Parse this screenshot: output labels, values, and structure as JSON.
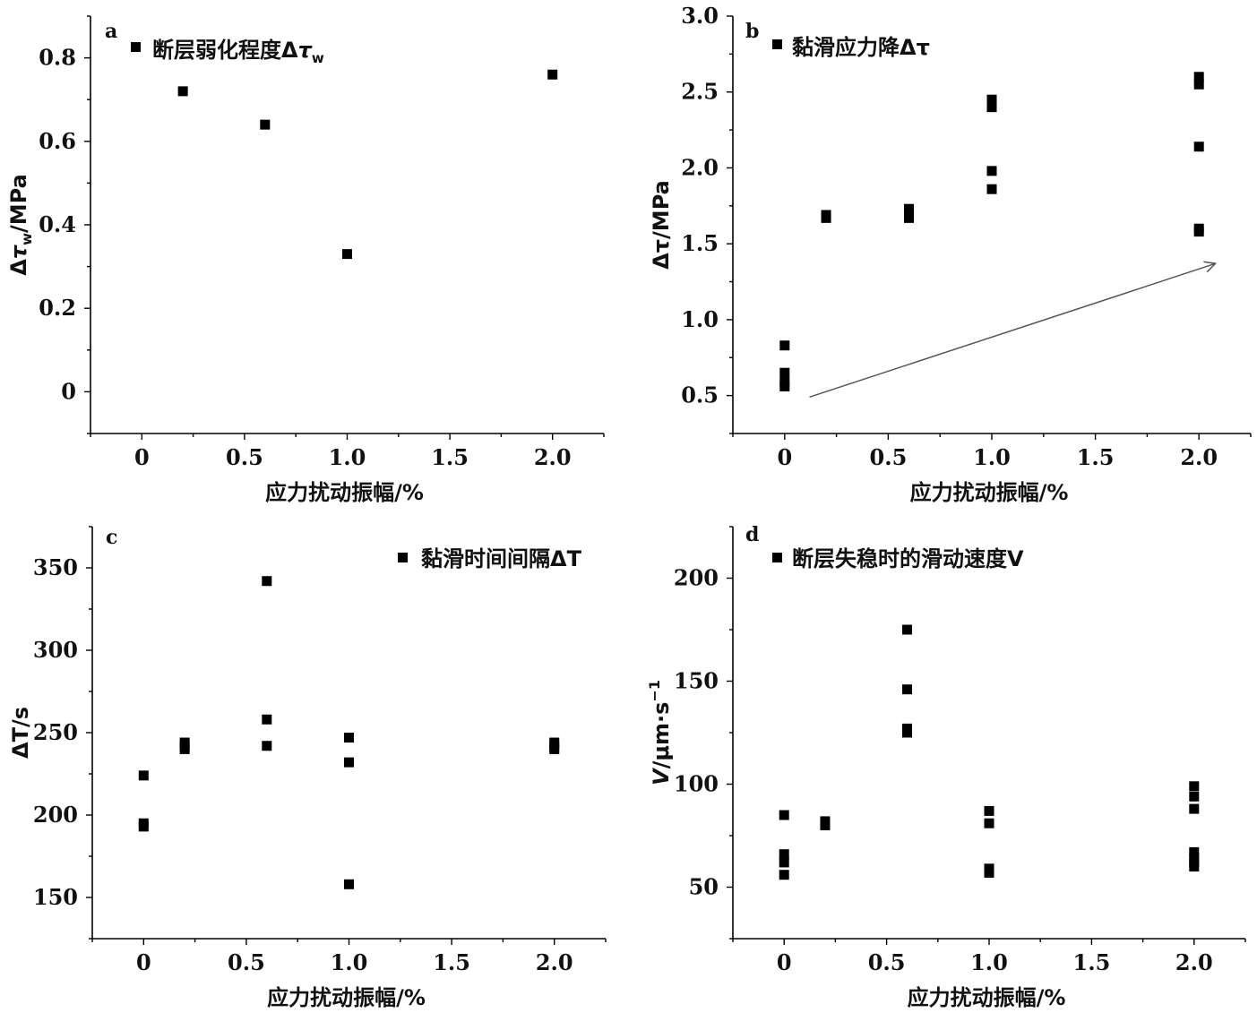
{
  "chart_data": [
    {
      "id": "a",
      "type": "scatter",
      "panel_label": "a",
      "xlabel": "应力扰动振幅/%",
      "ylabel": "Δτw/MPa",
      "xlim": [
        -0.25,
        2.25
      ],
      "ylim": [
        -0.1,
        0.9
      ],
      "xticks": [
        0,
        0.5,
        1.0,
        1.5,
        2.0
      ],
      "xtick_labels": [
        "0",
        "0.5",
        "1.0",
        "1.5",
        "2.0"
      ],
      "yticks": [
        0,
        0.2,
        0.4,
        0.6,
        0.8
      ],
      "ytick_labels": [
        "0",
        "0.2",
        "0.4",
        "0.6",
        "0.8"
      ],
      "legend_position": "top-left",
      "series": [
        {
          "name": "断层弱化程度Δτw",
          "marker": "square",
          "x": [
            0.2,
            0.6,
            1.0,
            2.0
          ],
          "y": [
            0.72,
            0.64,
            0.33,
            0.76
          ]
        }
      ]
    },
    {
      "id": "b",
      "type": "scatter",
      "panel_label": "b",
      "xlabel": "应力扰动振幅/%",
      "ylabel": "Δτ/MPa",
      "xlim": [
        -0.25,
        2.25
      ],
      "ylim": [
        0.25,
        3.0
      ],
      "xticks": [
        0,
        0.5,
        1.0,
        1.5,
        2.0
      ],
      "xtick_labels": [
        "0",
        "0.5",
        "1.0",
        "1.5",
        "2.0"
      ],
      "yticks": [
        0.5,
        1.0,
        1.5,
        2.0,
        2.5,
        3.0
      ],
      "ytick_labels": [
        "0.5",
        "1.0",
        "1.5",
        "2.0",
        "2.5",
        "3.0"
      ],
      "legend_position": "top-left",
      "trend_arrow": {
        "from": [
          0.12,
          0.49
        ],
        "to": [
          2.08,
          1.37
        ]
      },
      "series": [
        {
          "name": "黏滑应力降Δτ",
          "marker": "square",
          "x": [
            0,
            0,
            0,
            0,
            0.2,
            0.2,
            0.6,
            0.6,
            0.6,
            1.0,
            1.0,
            1.0,
            1.0,
            1.0,
            2.0,
            2.0,
            2.0,
            2.0,
            2.0
          ],
          "y": [
            0.83,
            0.65,
            0.59,
            0.56,
            1.69,
            1.67,
            1.73,
            1.7,
            1.67,
            2.45,
            2.4,
            1.98,
            1.86,
            2.43,
            2.6,
            2.55,
            2.14,
            1.6,
            1.58
          ]
        }
      ]
    },
    {
      "id": "c",
      "type": "scatter",
      "panel_label": "c",
      "xlabel": "应力扰动振幅/%",
      "ylabel": "ΔT/s",
      "xlim": [
        -0.25,
        2.25
      ],
      "ylim": [
        125,
        375
      ],
      "xticks": [
        0,
        0.5,
        1.0,
        1.5,
        2.0
      ],
      "xtick_labels": [
        "0",
        "0.5",
        "1.0",
        "1.5",
        "2.0"
      ],
      "yticks": [
        150,
        200,
        250,
        300,
        350
      ],
      "ytick_labels": [
        "150",
        "200",
        "250",
        "300",
        "350"
      ],
      "legend_position": "top-right",
      "series": [
        {
          "name": "黏滑时间间隔ΔT",
          "marker": "square",
          "x": [
            0,
            0,
            0,
            0.2,
            0.2,
            0.2,
            0.6,
            0.6,
            0.6,
            1.0,
            1.0,
            1.0,
            2.0,
            2.0,
            2.0
          ],
          "y": [
            224,
            195,
            193,
            244,
            242,
            240,
            342,
            258,
            242,
            247,
            232,
            158,
            244,
            242,
            240
          ]
        }
      ]
    },
    {
      "id": "d",
      "type": "scatter",
      "panel_label": "d",
      "xlabel": "应力扰动振幅/%",
      "ylabel": "V/μm·s⁻¹",
      "xlim": [
        -0.25,
        2.25
      ],
      "ylim": [
        25,
        225
      ],
      "xticks": [
        0,
        0.5,
        1.0,
        1.5,
        2.0
      ],
      "xtick_labels": [
        "0",
        "0.5",
        "1.0",
        "1.5",
        "2.0"
      ],
      "yticks": [
        50,
        100,
        150,
        200
      ],
      "ytick_labels": [
        "50",
        "100",
        "150",
        "200"
      ],
      "legend_position": "top-left",
      "series": [
        {
          "name": "断层失稳时的滑动速度V",
          "marker": "square",
          "x": [
            0,
            0,
            0,
            0,
            0.2,
            0.2,
            0.6,
            0.6,
            0.6,
            0.6,
            1.0,
            1.0,
            1.0,
            1.0,
            2.0,
            2.0,
            2.0,
            2.0,
            2.0,
            2.0,
            2.0
          ],
          "y": [
            85,
            66,
            62,
            56,
            82,
            80,
            175,
            146,
            127,
            125,
            87,
            81,
            59,
            57,
            99,
            94,
            88,
            67,
            64,
            62,
            60
          ]
        }
      ]
    }
  ]
}
